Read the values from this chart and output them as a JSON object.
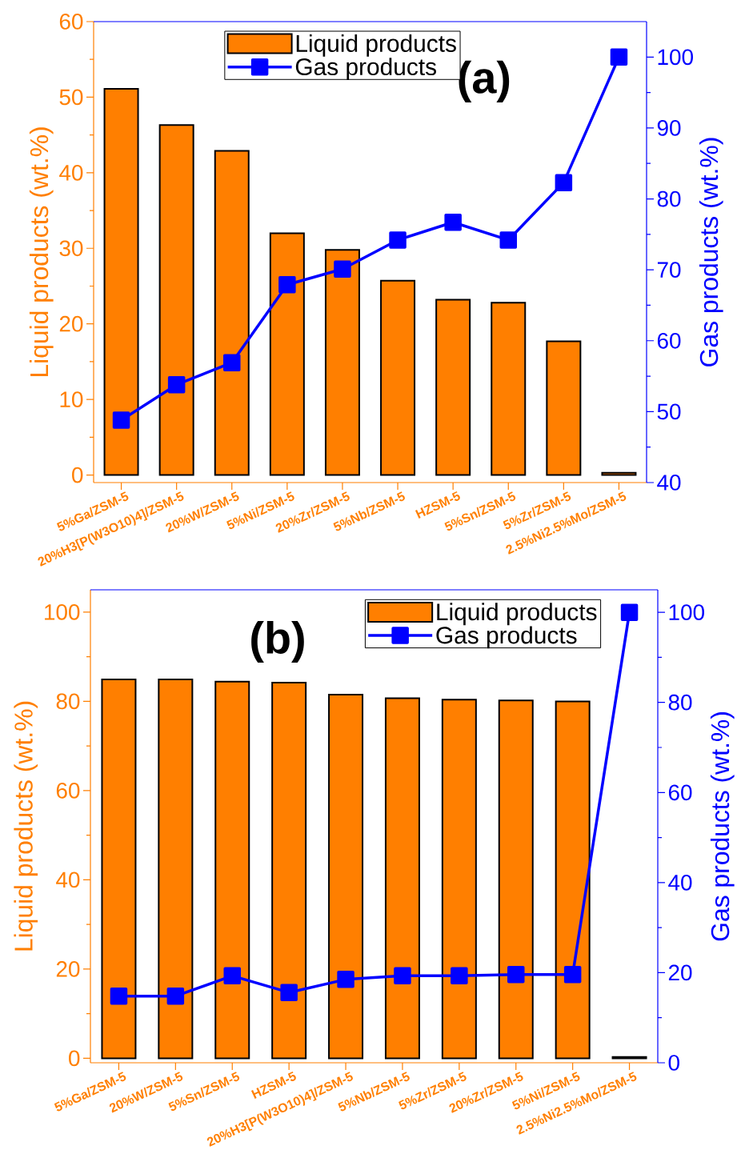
{
  "chart_data": [
    {
      "type": "bar",
      "categories": [
        "5%Ga/ZSM-5",
        "20%H3[P(W3O10)4]/ZSM-5",
        "20%W/ZSM-5",
        "5%Ni/ZSM-5",
        "20%Zr/ZSM-5",
        "5%Nb/ZSM-5",
        "HZSM-5",
        "5%Sn/ZSM-5",
        "5%Zr/ZSM-5",
        "2.5%Ni2.5%Mo/ZSM-5"
      ],
      "ylabel": "Liquid products (wt.%)",
      "y2label": "Gas products (wt.%)",
      "ylim": [
        -1,
        60
      ],
      "yticks": [
        0,
        10,
        20,
        30,
        40,
        50,
        60
      ],
      "y2lim": [
        40,
        105
      ],
      "y2ticks": [
        40,
        50,
        60,
        70,
        80,
        90,
        100
      ],
      "series": [
        {
          "name": "Liquid products",
          "color": "#ff7f00",
          "values": [
            51.1,
            46.3,
            42.9,
            32.0,
            29.8,
            25.7,
            23.2,
            22.8,
            17.7,
            0.3
          ]
        },
        {
          "name": "Gas products",
          "type": "line",
          "axis": "y2",
          "color": "#0000ff",
          "values": [
            48.8,
            53.8,
            56.9,
            67.9,
            70.1,
            74.2,
            76.7,
            74.2,
            82.3,
            100
          ]
        }
      ],
      "marker": "square",
      "legend": "top",
      "annotations": [
        "(a)"
      ]
    },
    {
      "type": "bar",
      "categories": [
        "5%Ga/ZSM-5",
        "20%W/ZSM-5",
        "5%Sn/ZSM-5",
        "HZSM-5",
        "20%H3[P(W3O10)4]/ZSM-5",
        "5%Nb/ZSM-5",
        "5%Zr/ZSM-5",
        "20%Zr/ZSM-5",
        "5%Ni/ZSM-5",
        "2.5%Ni2.5%Mo/ZSM-5"
      ],
      "ylabel": "Liquid products (wt.%)",
      "y2label": "Gas products (wt.%)",
      "ylim": [
        -1,
        105
      ],
      "yticks": [
        0,
        20,
        40,
        60,
        80,
        100
      ],
      "y2lim": [
        0,
        105
      ],
      "y2ticks": [
        0,
        20,
        40,
        60,
        80,
        100
      ],
      "series": [
        {
          "name": "Liquid products",
          "color": "#ff7f00",
          "values": [
            84.9,
            84.9,
            84.4,
            84.2,
            81.5,
            80.7,
            80.4,
            80.2,
            80.0,
            0.3
          ]
        },
        {
          "name": "Gas products",
          "type": "line",
          "axis": "y2",
          "color": "#0000ff",
          "values": [
            14.8,
            14.8,
            19.3,
            15.6,
            18.5,
            19.3,
            19.3,
            19.6,
            19.6,
            100
          ]
        }
      ],
      "marker": "square",
      "legend": "top right",
      "annotations": [
        "(b)"
      ]
    }
  ]
}
